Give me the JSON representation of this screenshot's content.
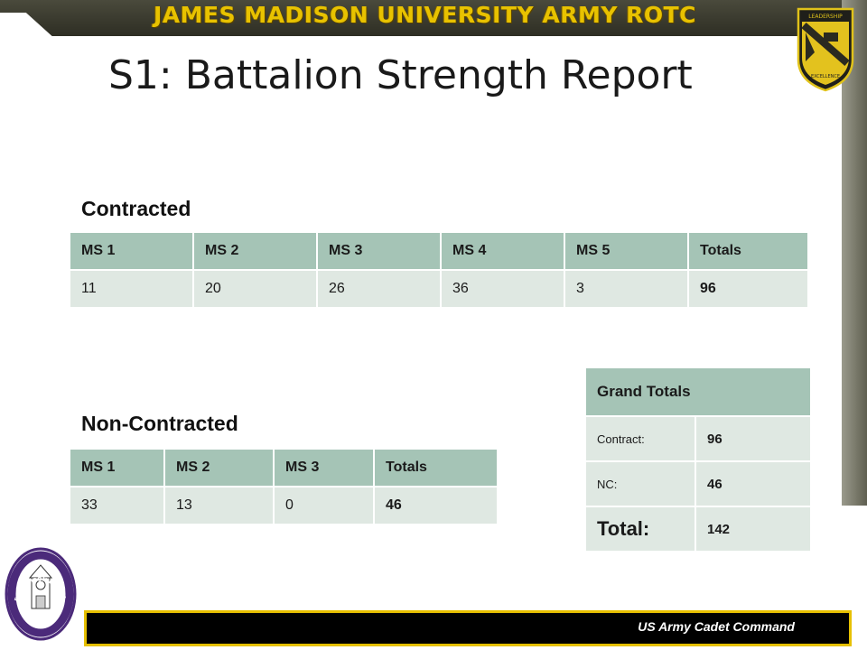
{
  "banner": {
    "text": "JAMES MADISON UNIVERSITY ARMY ROTC"
  },
  "slide": {
    "title": "S1: Battalion Strength Report"
  },
  "contracted": {
    "label": "Contracted",
    "headers": [
      "MS 1",
      "MS 2",
      "MS 3",
      "MS 4",
      "MS 5",
      "Totals"
    ],
    "values": [
      "11",
      "20",
      "26",
      "36",
      "3",
      "96"
    ]
  },
  "non_contracted": {
    "label": "Non-Contracted",
    "headers": [
      "MS 1",
      "MS 2",
      "MS 3",
      "Totals"
    ],
    "values": [
      "33",
      "13",
      "0",
      "46"
    ]
  },
  "grand_totals": {
    "header": "Grand Totals",
    "rows": [
      {
        "label": "Contract:",
        "value": "96"
      },
      {
        "label": "NC:",
        "value": "46"
      },
      {
        "label": "Total:",
        "value": "142"
      }
    ]
  },
  "emblem": {
    "top_text": "LEADERSHIP",
    "bottom_text": "EXCELLENCE"
  },
  "seal": {
    "top_text": "JAMES MADISON UNIVERSITY",
    "bottom_text": "DUKE BATTALION"
  },
  "footer": {
    "text": "US Army Cadet Command"
  },
  "colors": {
    "banner_gold": "#e8c200",
    "banner_dark": "#3a3a2e",
    "table_header": "#a5c4b6",
    "table_cell": "#dfe8e2",
    "seal_purple": "#4b2a7a",
    "footer_border": "#e6c000"
  }
}
